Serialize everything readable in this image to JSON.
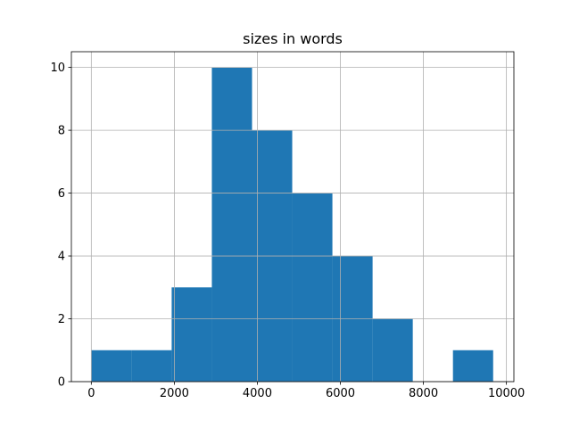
{
  "chart_data": {
    "type": "bar",
    "subtype": "histogram",
    "title": "sizes in words",
    "xlabel": "",
    "ylabel": "",
    "bin_edges": [
      0,
      968,
      1936,
      2904,
      3872,
      4840,
      5808,
      6776,
      7744,
      8712,
      9680
    ],
    "values": [
      1,
      1,
      3,
      10,
      8,
      6,
      4,
      2,
      0,
      1
    ],
    "xlim": [
      -480,
      10180
    ],
    "ylim": [
      0,
      10.5
    ],
    "xticks": [
      0,
      2000,
      4000,
      6000,
      8000,
      10000
    ],
    "xtick_labels": [
      "0",
      "2000",
      "4000",
      "6000",
      "8000",
      "10000"
    ],
    "yticks": [
      0,
      2,
      4,
      6,
      8,
      10
    ],
    "ytick_labels": [
      "0",
      "2",
      "4",
      "6",
      "8",
      "10"
    ],
    "grid": true,
    "bar_color": "#1f77b4",
    "grid_color": "#b0b0b0"
  }
}
